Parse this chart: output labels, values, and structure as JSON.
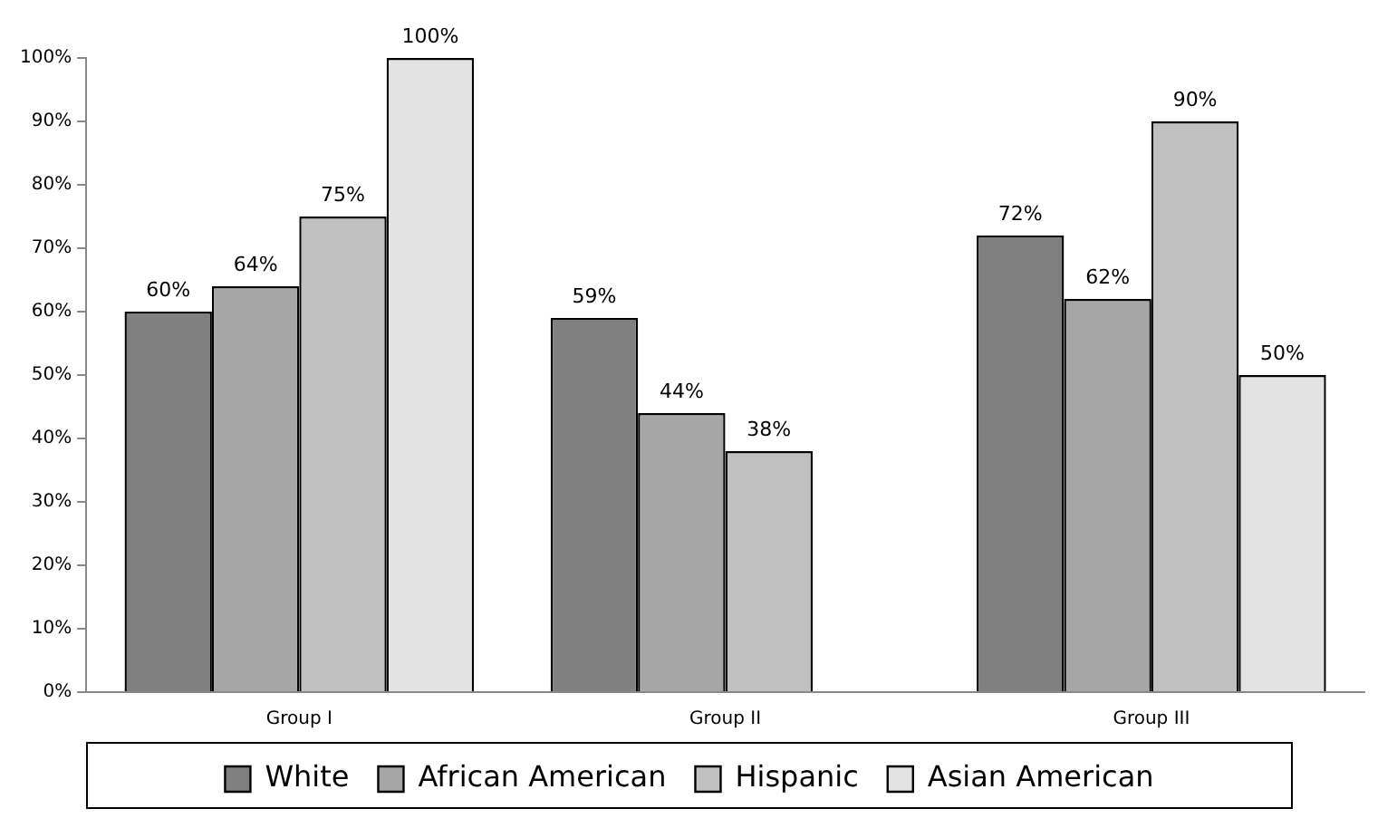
{
  "chart_data": {
    "type": "bar",
    "categories": [
      "Group I",
      "Group II",
      "Group III"
    ],
    "series": [
      {
        "name": "White",
        "color": "#808080",
        "values": [
          60,
          59,
          72
        ],
        "value_labels": [
          "60%",
          "59%",
          "72%"
        ]
      },
      {
        "name": "African American",
        "color": "#a6a6a6",
        "values": [
          64,
          44,
          62
        ],
        "value_labels": [
          "64%",
          "44%",
          "62%"
        ]
      },
      {
        "name": "Hispanic",
        "color": "#c0c0c0",
        "values": [
          75,
          38,
          90
        ],
        "value_labels": [
          "75%",
          "38%",
          "90%"
        ]
      },
      {
        "name": "Asian American",
        "color": "#e3e3e3",
        "values": [
          100,
          null,
          50
        ],
        "value_labels": [
          "100%",
          null,
          "50%"
        ]
      }
    ],
    "ylim": [
      0,
      100
    ],
    "yticks": [
      {
        "value": 0,
        "label": "0%"
      },
      {
        "value": 10,
        "label": "10%"
      },
      {
        "value": 20,
        "label": "20%"
      },
      {
        "value": 30,
        "label": "30%"
      },
      {
        "value": 40,
        "label": "40%"
      },
      {
        "value": 50,
        "label": "50%"
      },
      {
        "value": 60,
        "label": "60%"
      },
      {
        "value": 70,
        "label": "70%"
      },
      {
        "value": 80,
        "label": "80%"
      },
      {
        "value": 90,
        "label": "90%"
      },
      {
        "value": 100,
        "label": "100%"
      }
    ],
    "grid": false,
    "legend": "bottom"
  }
}
